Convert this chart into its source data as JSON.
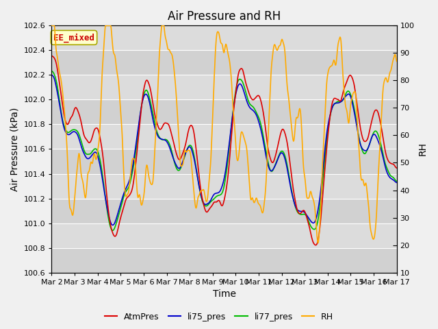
{
  "title": "Air Pressure and RH",
  "ylabel_left": "Air Pressure (kPa)",
  "ylabel_right": "RH",
  "xlabel": "Time",
  "ylim_left": [
    100.6,
    102.6
  ],
  "ylim_right": [
    10,
    100
  ],
  "yticks_left": [
    100.6,
    100.8,
    101.0,
    101.2,
    101.4,
    101.6,
    101.8,
    102.0,
    102.2,
    102.4,
    102.6
  ],
  "yticks_right": [
    10,
    20,
    30,
    40,
    50,
    60,
    70,
    80,
    90,
    100
  ],
  "xtick_labels": [
    "Mar 2",
    "Mar 3",
    "Mar 4",
    "Mar 5",
    "Mar 6",
    "Mar 7",
    "Mar 8",
    "Mar 9",
    "Mar 10",
    "Mar 11",
    "Mar 12",
    "Mar 13",
    "Mar 14",
    "Mar 15",
    "Mar 16",
    "Mar 17"
  ],
  "annotation_text": "EE_mixed",
  "annotation_color": "#cc0000",
  "annotation_bg": "#ffffcc",
  "annotation_border": "#aaa800",
  "colors": {
    "AtmPres": "#dd0000",
    "li75_pres": "#0000cc",
    "li77_pres": "#00bb00",
    "RH": "#ffaa00"
  },
  "linewidths": {
    "AtmPres": 1.2,
    "li75_pres": 1.2,
    "li77_pres": 1.2,
    "RH": 1.2
  },
  "background_color": "#dcdcdc",
  "grid_color": "#ffffff",
  "fig_facecolor": "#f0f0f0",
  "title_fontsize": 12,
  "axis_label_fontsize": 10,
  "tick_fontsize": 8,
  "legend_fontsize": 9,
  "figsize": [
    6.4,
    4.8
  ],
  "dpi": 100
}
